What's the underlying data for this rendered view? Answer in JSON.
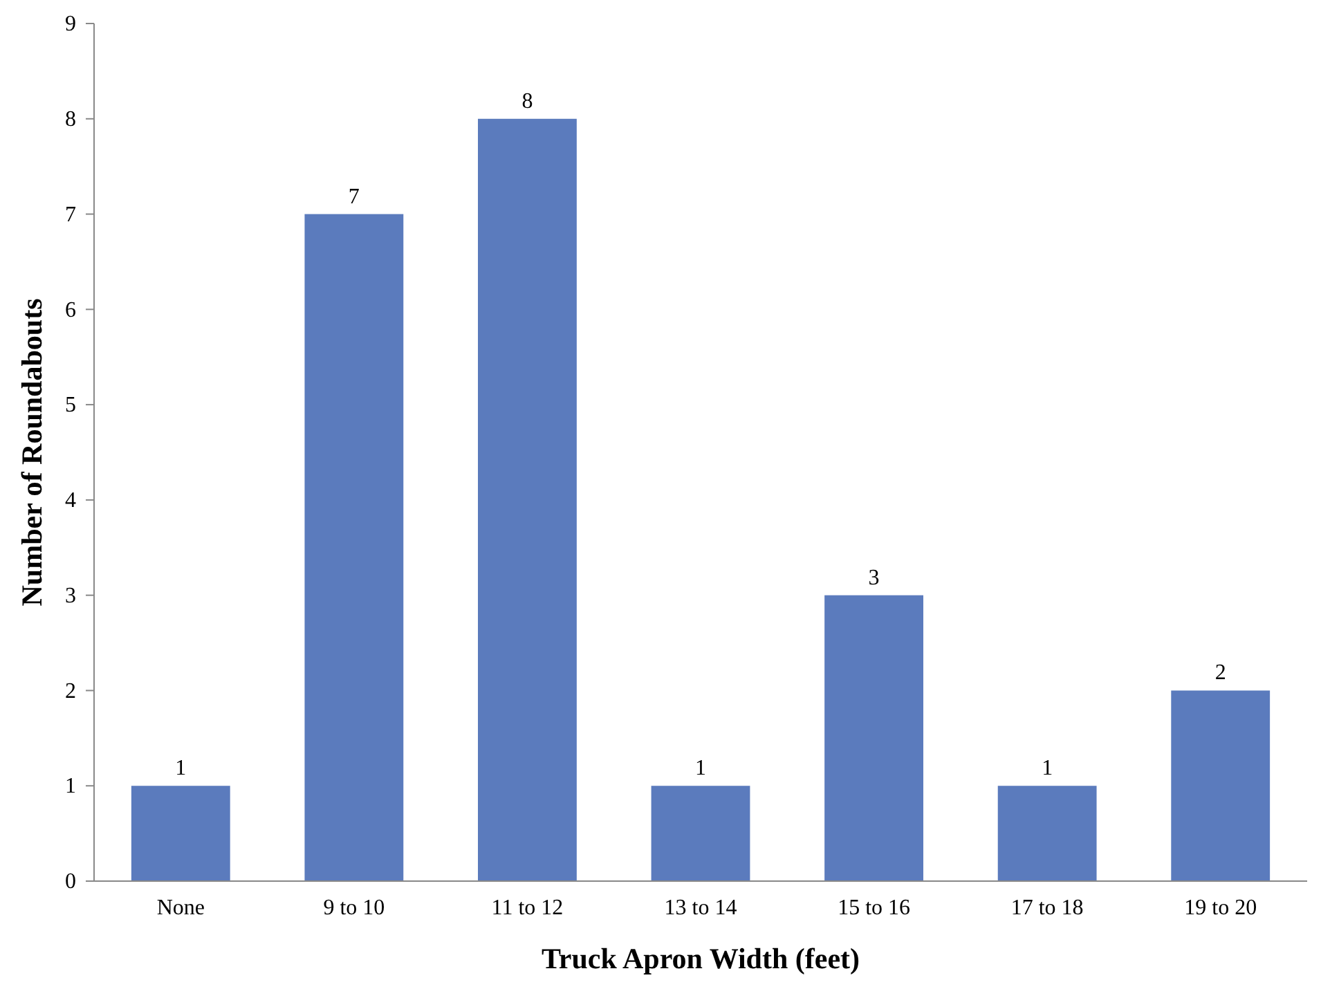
{
  "chart_data": {
    "type": "bar",
    "xlabel": "Truck Apron Width (feet)",
    "ylabel": "Number of Roundabouts",
    "categories": [
      "None",
      "9 to 10",
      "11 to 12",
      "13 to 14",
      "15 to 16",
      "17 to 18",
      "19 to 20"
    ],
    "values": [
      1,
      7,
      8,
      1,
      3,
      1,
      2
    ],
    "color": "#5b7bbd",
    "ylim": [
      0,
      9
    ],
    "yticks": [
      0,
      1,
      2,
      3,
      4,
      5,
      6,
      7,
      8,
      9
    ],
    "grid": false,
    "data_labels": true
  }
}
